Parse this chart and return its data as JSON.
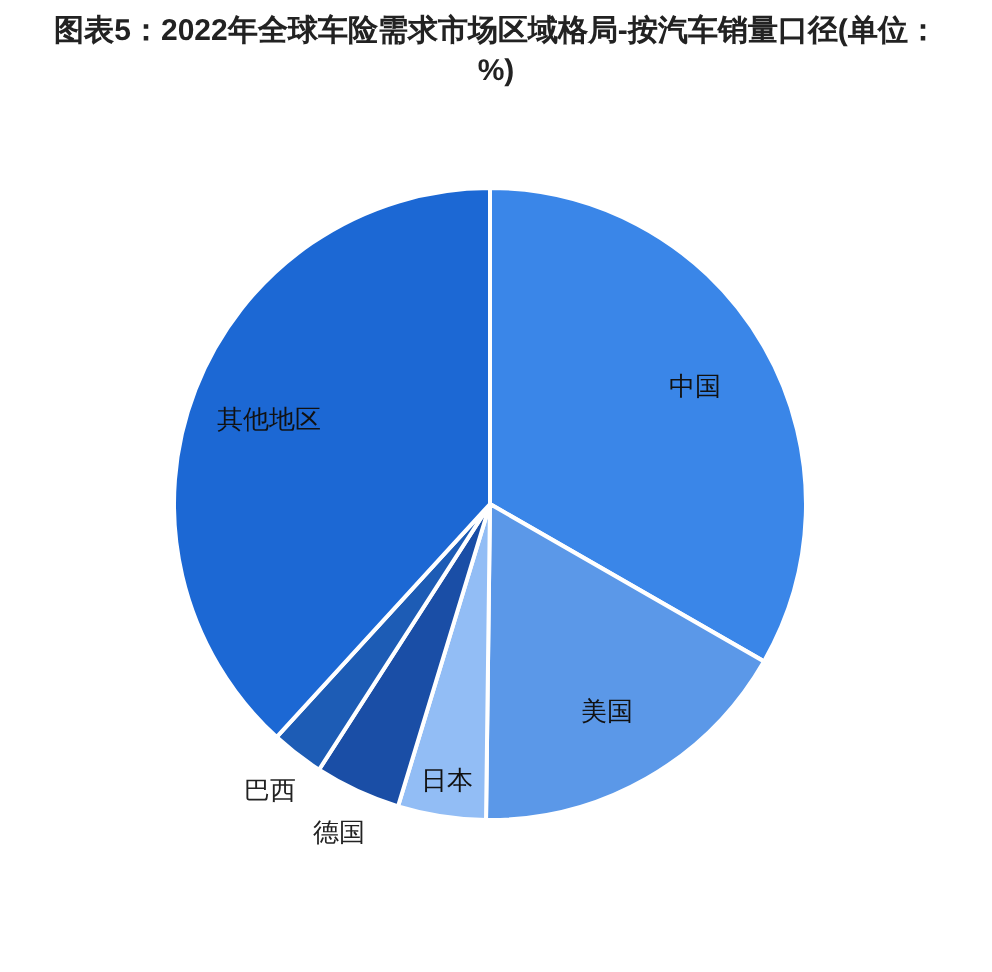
{
  "chart_data": {
    "type": "pie",
    "title": "图表5：2022年全球车险需求市场区域格局-按汽车销量口径(单位：%)",
    "categories": [
      "中国",
      "美国",
      "日本",
      "德国",
      "巴西",
      "其他地区"
    ],
    "values": [
      33.3,
      16.9,
      4.5,
      4.4,
      2.7,
      38.2
    ],
    "colors": [
      "#3a86e8",
      "#5b98e8",
      "#92bdf5",
      "#1a4ea6",
      "#1d5cb5",
      "#1c68d4"
    ]
  }
}
